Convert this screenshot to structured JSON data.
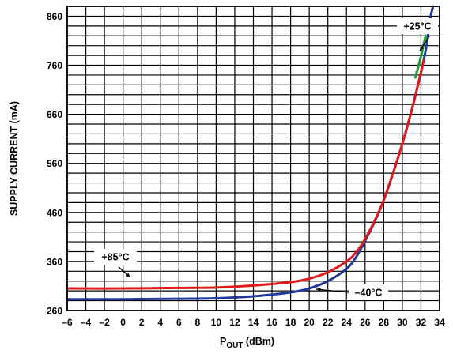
{
  "chart_data": {
    "type": "line",
    "xlabel_main": "P",
    "xlabel_sub": "OUT",
    "xlabel_rest": " (dBm)",
    "ylabel": "SUPPLY CURRENT (mA)",
    "xlim": [
      -6,
      34
    ],
    "ylim": [
      260,
      880
    ],
    "x_ticks": [
      -6,
      -4,
      -2,
      0,
      2,
      4,
      6,
      8,
      10,
      12,
      14,
      16,
      18,
      20,
      22,
      24,
      26,
      28,
      30,
      32,
      34
    ],
    "x_tick_labels": [
      "–6",
      "–4",
      "–2",
      "0",
      "2",
      "4",
      "6",
      "8",
      "10",
      "12",
      "14",
      "16",
      "18",
      "20",
      "22",
      "24",
      "26",
      "28",
      "30",
      "32",
      "34"
    ],
    "y_ticks": [
      260,
      360,
      460,
      560,
      660,
      760,
      860
    ],
    "y_tick_labels": [
      "260",
      "360",
      "460",
      "560",
      "660",
      "760",
      "860"
    ],
    "y_grid_step": 20,
    "grid": true,
    "series": [
      {
        "name": "+25°C",
        "color": "#1e9a3a",
        "points": [
          [
            31.4,
            735
          ],
          [
            32.0,
            778
          ],
          [
            32.5,
            820
          ]
        ]
      },
      {
        "name": "–40°C",
        "color": "#1f3a9a",
        "points": [
          [
            -6,
            283
          ],
          [
            0,
            283
          ],
          [
            6,
            284
          ],
          [
            10,
            285
          ],
          [
            14,
            289
          ],
          [
            18,
            297
          ],
          [
            20,
            305
          ],
          [
            22,
            320
          ],
          [
            24,
            345
          ],
          [
            25,
            368
          ],
          [
            26,
            402
          ],
          [
            27,
            440
          ],
          [
            28,
            485
          ],
          [
            29,
            540
          ],
          [
            30,
            600
          ],
          [
            31,
            668
          ],
          [
            32,
            745
          ],
          [
            32.6,
            800
          ],
          [
            33.0,
            855
          ],
          [
            33.3,
            880
          ]
        ]
      },
      {
        "name": "+85°C",
        "color": "#e01a1a",
        "points": [
          [
            -6,
            305
          ],
          [
            0,
            305
          ],
          [
            6,
            306
          ],
          [
            10,
            307
          ],
          [
            14,
            311
          ],
          [
            18,
            318
          ],
          [
            20,
            325
          ],
          [
            22,
            338
          ],
          [
            24,
            360
          ],
          [
            25,
            378
          ],
          [
            26,
            406
          ],
          [
            27,
            442
          ],
          [
            28,
            485
          ],
          [
            29,
            540
          ],
          [
            30,
            600
          ],
          [
            31,
            668
          ],
          [
            32,
            745
          ],
          [
            32.3,
            770
          ]
        ]
      }
    ],
    "annotations": [
      {
        "label": "+25°C",
        "series": "+25°C"
      },
      {
        "label": "+85°C",
        "series": "+85°C"
      },
      {
        "label": "–40°C",
        "series": "–40°C"
      }
    ]
  }
}
